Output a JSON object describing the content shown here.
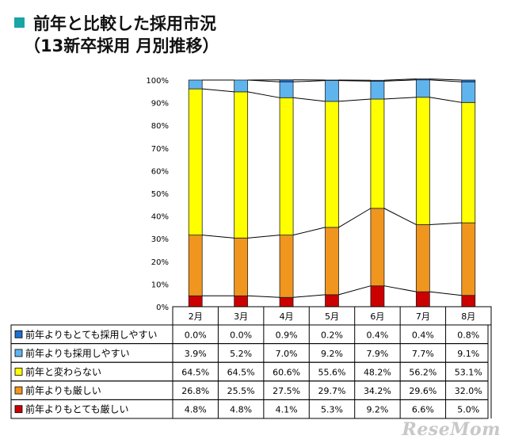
{
  "title": {
    "line1": "前年と比較した採用市況",
    "line2": "（13新卒採用 月別推移）"
  },
  "watermark": "ReseMom",
  "colors": {
    "title_marker": "#1aa5a5",
    "series": [
      "#cc0000",
      "#f0961e",
      "#ffff00",
      "#5fb4ee",
      "#1e6fd0"
    ]
  },
  "chart_data": {
    "type": "bar",
    "stacked": true,
    "percent_stacked": true,
    "categories": [
      "2月",
      "3月",
      "4月",
      "5月",
      "6月",
      "7月",
      "8月"
    ],
    "y_ticks": [
      "0%",
      "10%",
      "20%",
      "30%",
      "40%",
      "50%",
      "60%",
      "70%",
      "80%",
      "90%",
      "100%"
    ],
    "ylim": [
      0,
      100
    ],
    "grid": false,
    "legend": "table-below",
    "series_stack_order": "bottom-to-top",
    "series": [
      {
        "name": "前年よりもとても厳しい",
        "values": [
          4.8,
          4.8,
          4.1,
          5.3,
          9.2,
          6.6,
          5.0
        ],
        "labels": [
          "4.8%",
          "4.8%",
          "4.1%",
          "5.3%",
          "9.2%",
          "6.6%",
          "5.0%"
        ]
      },
      {
        "name": "前年よりも厳しい",
        "values": [
          26.8,
          25.5,
          27.5,
          29.7,
          34.2,
          29.6,
          32.0
        ],
        "labels": [
          "26.8%",
          "25.5%",
          "27.5%",
          "29.7%",
          "34.2%",
          "29.6%",
          "32.0%"
        ]
      },
      {
        "name": "前年と変わらない",
        "values": [
          64.5,
          64.5,
          60.6,
          55.6,
          48.2,
          56.2,
          53.1
        ],
        "labels": [
          "64.5%",
          "64.5%",
          "60.6%",
          "55.6%",
          "48.2%",
          "56.2%",
          "53.1%"
        ]
      },
      {
        "name": "前年よりも採用しやすい",
        "values": [
          3.9,
          5.2,
          7.0,
          9.2,
          7.9,
          7.7,
          9.1
        ],
        "labels": [
          "3.9%",
          "5.2%",
          "7.0%",
          "9.2%",
          "7.9%",
          "7.7%",
          "9.1%"
        ]
      },
      {
        "name": "前年よりもとても採用しやすい",
        "values": [
          0.0,
          0.0,
          0.9,
          0.2,
          0.4,
          0.4,
          0.8
        ],
        "labels": [
          "0.0%",
          "0.0%",
          "0.9%",
          "0.2%",
          "0.4%",
          "0.4%",
          "0.8%"
        ]
      }
    ],
    "table_row_order": [
      "前年よりもとても採用しやすい",
      "前年よりも採用しやすい",
      "前年と変わらない",
      "前年よりも厳しい",
      "前年よりもとても厳しい"
    ]
  }
}
